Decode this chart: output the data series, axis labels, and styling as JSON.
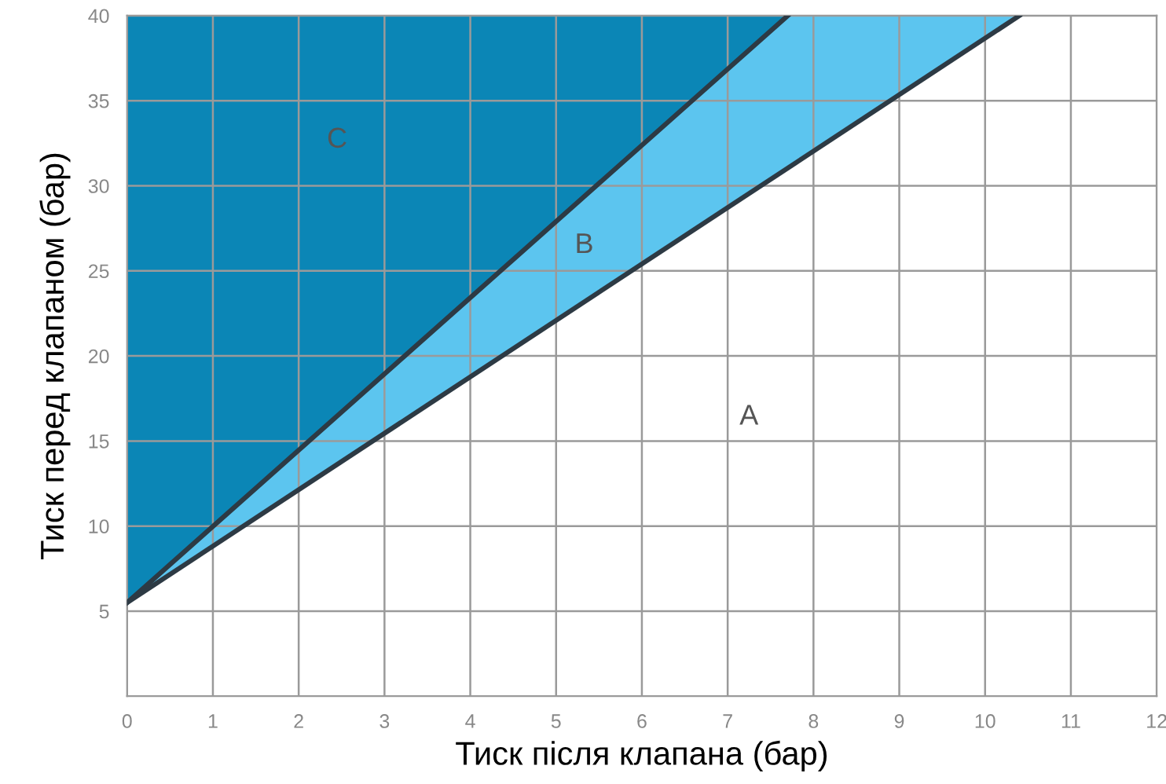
{
  "chart_data": {
    "type": "area",
    "xlabel": "Тиск після клапана (бар)",
    "ylabel": "Тиск перед клапаном (бар)",
    "series": [
      {
        "color": "#5cc5ef",
        "x": [
          0,
          10.4
        ],
        "values": [
          5.5,
          40
        ]
      },
      {
        "color": "#0b86b6",
        "x": [
          0,
          7.7
        ],
        "values": [
          5.5,
          40
        ]
      }
    ],
    "annotations": [
      "C",
      "B",
      "A"
    ],
    "xlim": [
      0,
      12
    ],
    "ylim": [
      0,
      40
    ],
    "xticks": [
      0,
      1,
      2,
      3,
      4,
      5,
      6,
      7,
      8,
      9,
      10,
      11,
      12
    ],
    "yticks": [
      5,
      10,
      15,
      20,
      25,
      30,
      35,
      40
    ],
    "grid": true
  }
}
